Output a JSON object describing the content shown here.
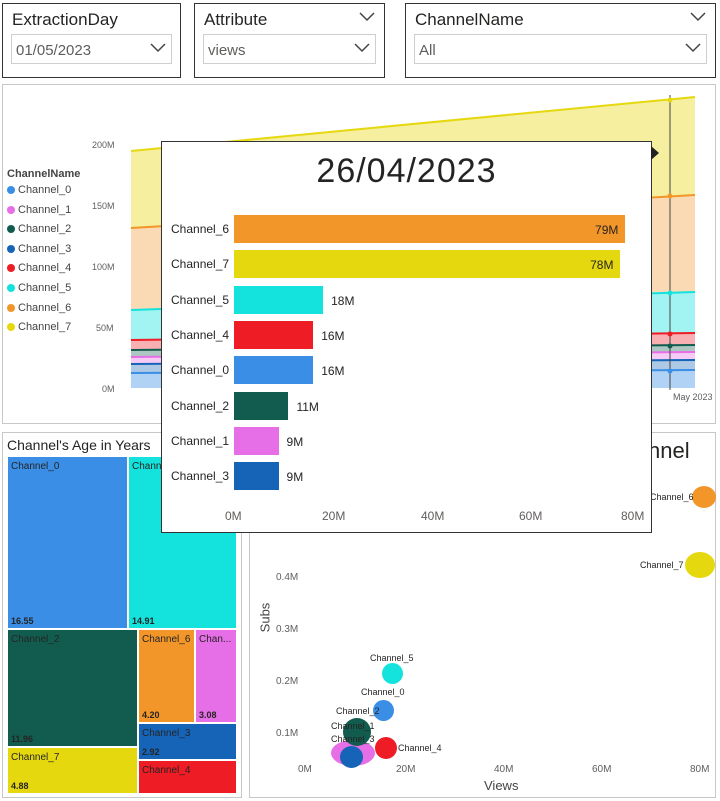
{
  "slicers": [
    {
      "title": "ExtractionDay",
      "value": "01/05/2023"
    },
    {
      "title": "Attribute",
      "value": "views"
    },
    {
      "title": "ChannelName",
      "value": "All"
    }
  ],
  "area_chart": {
    "legend_title": "ChannelName",
    "legend": [
      {
        "name": "Channel_0",
        "color": "#3a8ee6"
      },
      {
        "name": "Channel_1",
        "color": "#e66ee6"
      },
      {
        "name": "Channel_2",
        "color": "#125c4f"
      },
      {
        "name": "Channel_3",
        "color": "#1564b8"
      },
      {
        "name": "Channel_4",
        "color": "#ee1c25"
      },
      {
        "name": "Channel_5",
        "color": "#13e3dc"
      },
      {
        "name": "Channel_6",
        "color": "#f2962a"
      },
      {
        "name": "Channel_7",
        "color": "#e6d80f"
      }
    ],
    "y_ticks": [
      "200M",
      "150M",
      "100M",
      "50M",
      "0M"
    ],
    "x_tick": "May 2023"
  },
  "tooltip": {
    "date": "26/04/2023",
    "x_ticks": [
      "0M",
      "20M",
      "40M",
      "60M",
      "80M"
    ],
    "xmax": 80
  },
  "chart_data": [
    {
      "type": "bar",
      "title": "26/04/2023",
      "categories": [
        "Channel_6",
        "Channel_7",
        "Channel_5",
        "Channel_4",
        "Channel_0",
        "Channel_2",
        "Channel_1",
        "Channel_3"
      ],
      "values": [
        79,
        78,
        18,
        16,
        16,
        11,
        9,
        9
      ],
      "value_labels": [
        "79M",
        "78M",
        "18M",
        "16M",
        "16M",
        "11M",
        "9M",
        "9M"
      ],
      "colors": [
        "#f2962a",
        "#e6d80f",
        "#13e3dc",
        "#ee1c25",
        "#3a8ee6",
        "#125c4f",
        "#e66ee6",
        "#1564b8"
      ],
      "xlim": [
        0,
        80
      ]
    },
    {
      "type": "scatter",
      "title": "nnel",
      "xlabel": "Views",
      "ylabel": "Subs",
      "x_ticks": [
        "0M",
        "20M",
        "40M",
        "60M",
        "80M"
      ],
      "y_ticks": [
        "0.4M",
        "0.3M",
        "0.2M",
        "0.1M"
      ],
      "points": [
        {
          "name": "Channel_6",
          "x": 80,
          "y": 0.49
        },
        {
          "name": "Channel_7",
          "x": 80,
          "y": 0.37
        },
        {
          "name": "Channel_5",
          "x": 18,
          "y": 0.2
        },
        {
          "name": "Channel_0",
          "x": 16,
          "y": 0.11
        },
        {
          "name": "Channel_2",
          "x": 11,
          "y": 0.07
        },
        {
          "name": "Channel_4",
          "x": 16,
          "y": 0.04
        },
        {
          "name": "Channel_1",
          "x": 9,
          "y": 0.03
        },
        {
          "name": "Channel_3",
          "x": 9,
          "y": 0.01
        }
      ]
    }
  ],
  "treemap": {
    "title": "Channel's Age in Years",
    "cells": [
      {
        "name": "Channel_0",
        "value": "16.55",
        "color": "#3a8ee6"
      },
      {
        "name": "Chann",
        "value": "14.91",
        "color": "#13e3dc"
      },
      {
        "name": "Channel_2",
        "value": "11.96",
        "color": "#125c4f"
      },
      {
        "name": "Channel_6",
        "value": "4.20",
        "color": "#f2962a"
      },
      {
        "name": "Chan...",
        "value": "3.08",
        "color": "#e66ee6"
      },
      {
        "name": "Channel_3",
        "value": "2.92",
        "color": "#1564b8"
      },
      {
        "name": "Channel_7",
        "value": "4.88",
        "color": "#e6d80f"
      },
      {
        "name": "Channel_4",
        "value": "",
        "color": "#ee1c25"
      }
    ]
  },
  "scatter_labels": {
    "channel_6": "Channel_6",
    "channel_7": "Channel_7",
    "channel_5": "Channel_5",
    "channel_0": "Channel_0",
    "channel_2": "Channel_2",
    "channel_4": "Channel_4",
    "channel_1": "Channel_1",
    "channel_3": "Channel_3"
  }
}
